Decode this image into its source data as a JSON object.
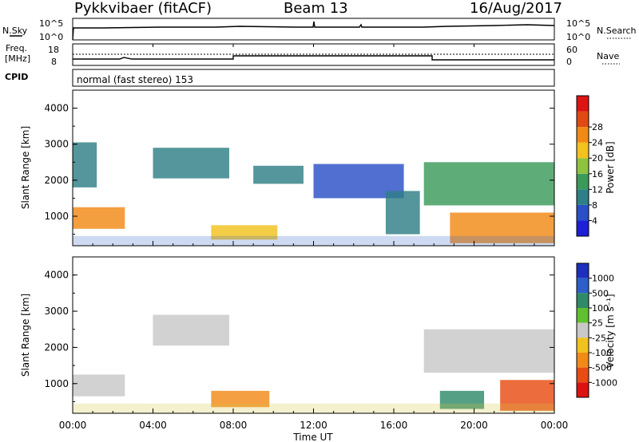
{
  "header": {
    "title": "Pykkvibaer (fitACF)",
    "beam": "Beam 13",
    "date": "16/Aug/2017"
  },
  "panels": {
    "nsky": {
      "label": "N.Sky",
      "right_label": "N.Search",
      "ytick_top": "10^5",
      "ytick_bottom": "10^0"
    },
    "freq": {
      "label_top": "Freq.",
      "label_unit": "[MHz]",
      "right_label": "Nave",
      "left_ticks": [
        "18",
        "8"
      ],
      "right_ticks": [
        "60",
        "0"
      ]
    },
    "cpid": {
      "label": "CPID",
      "text": "normal (fast stereo) 153"
    }
  },
  "colorbars": {
    "power": {
      "label": "Power [dB]",
      "ticks": [
        "28",
        "24",
        "20",
        "16",
        "12",
        "8",
        "4"
      ],
      "colors": [
        "#1f1fd6",
        "#2a4fc7",
        "#2e7f86",
        "#3b9a5a",
        "#8fc23e",
        "#f2c21f",
        "#f18a15",
        "#e04a12",
        "#dd1414"
      ]
    },
    "velocity": {
      "label": "Velocity [m s⁻¹]",
      "ticks": [
        "1000",
        "500",
        "100",
        "25",
        "-25",
        "-100",
        "-500",
        "-1000"
      ],
      "colors": [
        "#1e2fbf",
        "#2d5ec9",
        "#2f8a6a",
        "#5fc12f",
        "#c8c8c8",
        "#f0c21f",
        "#f28a17",
        "#e84c12",
        "#dd1212"
      ]
    }
  },
  "chart_data": [
    {
      "type": "heatmap",
      "title": "Power",
      "ylabel": "Slant Range [km]",
      "ylim": [
        180,
        4500
      ],
      "yticks": [
        "4000",
        "3000",
        "2000",
        "1000"
      ],
      "colorbar": "Power [dB]",
      "cells": [
        {
          "x0": 0.0,
          "x1": 2.6,
          "y0": 650,
          "y1": 1250,
          "power_db": 24
        },
        {
          "x0": 0.0,
          "x1": 1.2,
          "y0": 1800,
          "y1": 3050,
          "power_db": 8
        },
        {
          "x0": 4.0,
          "x1": 7.8,
          "y0": 2050,
          "y1": 2900,
          "power_db": 10
        },
        {
          "x0": 6.9,
          "x1": 10.2,
          "y0": 350,
          "y1": 750,
          "power_db": 22
        },
        {
          "x0": 9.0,
          "x1": 11.5,
          "y0": 1900,
          "y1": 2400,
          "power_db": 8
        },
        {
          "x0": 12.0,
          "x1": 16.5,
          "y0": 1500,
          "y1": 2450,
          "power_db": 6
        },
        {
          "x0": 15.6,
          "x1": 17.3,
          "y0": 500,
          "y1": 1700,
          "power_db": 10
        },
        {
          "x0": 17.5,
          "x1": 24.0,
          "y0": 1300,
          "y1": 2500,
          "power_db": 14
        },
        {
          "x0": 18.8,
          "x1": 24.0,
          "y0": 250,
          "y1": 1100,
          "power_db": 26
        }
      ]
    },
    {
      "type": "heatmap",
      "title": "Velocity",
      "xlabel": "Time UT",
      "ylabel": "Slant Range [km]",
      "ylim": [
        180,
        4500
      ],
      "yticks": [
        "4000",
        "3000",
        "2000",
        "1000"
      ],
      "xticks": [
        "00:00",
        "04:00",
        "08:00",
        "12:00",
        "16:00",
        "20:00",
        "00:00"
      ],
      "colorbar": "Velocity [m s⁻¹]",
      "cells": [
        {
          "x0": 0.0,
          "x1": 2.6,
          "y0": 650,
          "y1": 1250,
          "velocity": -5
        },
        {
          "x0": 4.0,
          "x1": 7.8,
          "y0": 2050,
          "y1": 2900,
          "velocity": 5
        },
        {
          "x0": 6.9,
          "x1": 9.8,
          "y0": 350,
          "y1": 800,
          "velocity": -150
        },
        {
          "x0": 17.5,
          "x1": 24.0,
          "y0": 1300,
          "y1": 2500,
          "velocity": 0
        },
        {
          "x0": 18.3,
          "x1": 20.5,
          "y0": 300,
          "y1": 800,
          "velocity": 200
        },
        {
          "x0": 21.3,
          "x1": 24.0,
          "y0": 250,
          "y1": 1100,
          "velocity": -600
        }
      ]
    }
  ]
}
